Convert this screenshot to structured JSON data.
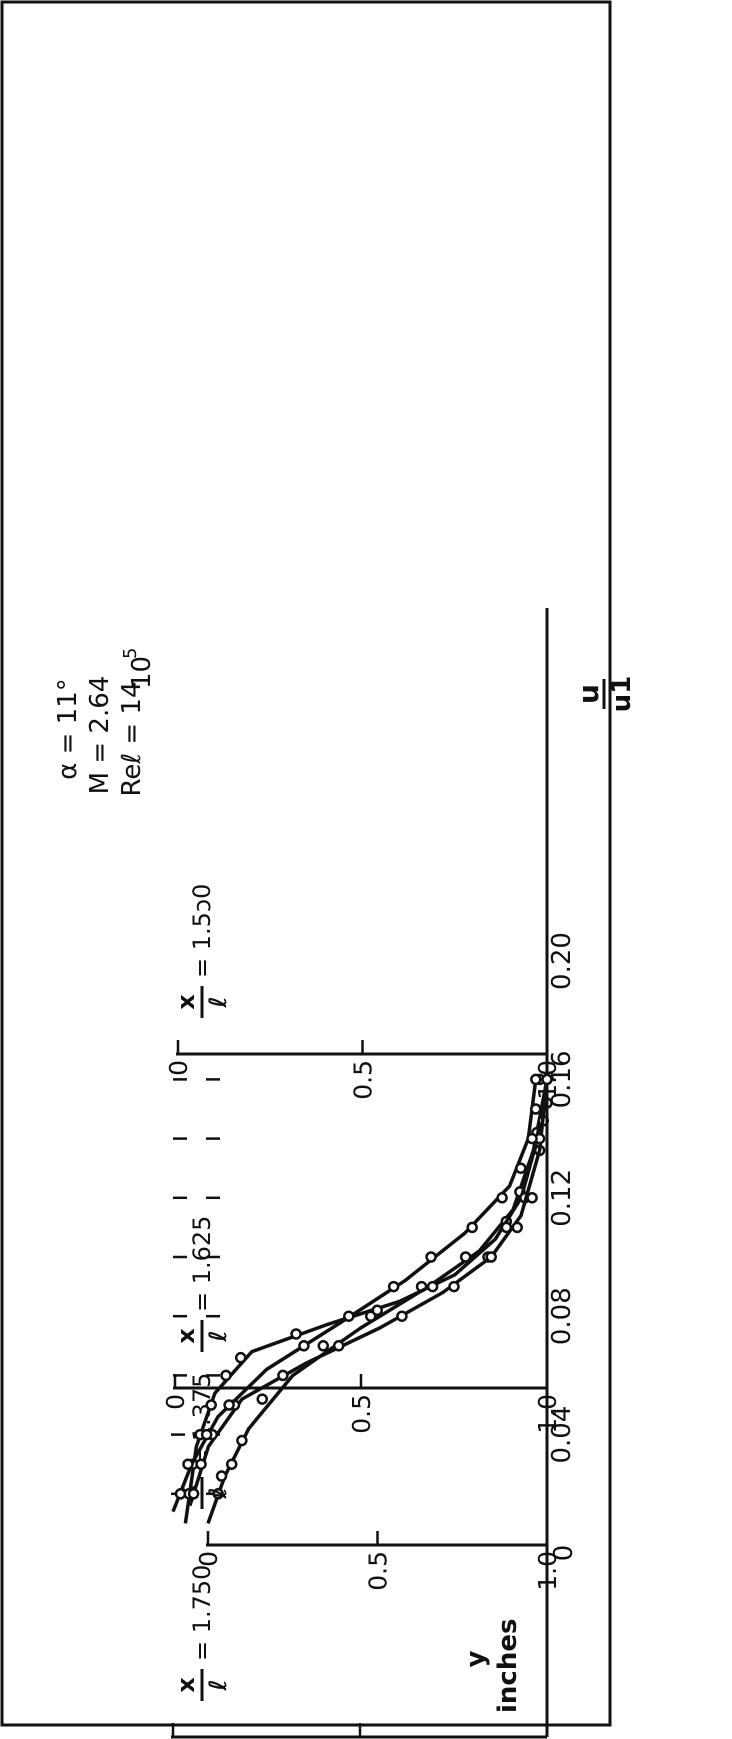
{
  "parameters": {
    "alpha": "α = 11°",
    "mach": "M = 2.64",
    "reynolds": "Reℓ = 14",
    "reynolds_power": "10",
    "reynolds_exponent": "5"
  },
  "y_axis": {
    "label": "y",
    "unit": "inches",
    "ticks": [
      "0.20",
      "0.16",
      "0.12",
      "0.08",
      "0.04",
      "0"
    ]
  },
  "x_axis": {
    "label_numerator": "u",
    "label_denominator": "u1",
    "ticks": [
      "0",
      "0.5",
      "1.0"
    ]
  },
  "station_label": {
    "numerator": "x",
    "denominator": "ℓ"
  },
  "chart_data": [
    {
      "type": "scatter",
      "station": "1.375",
      "station_text": "= 1.375",
      "xlim": [
        0,
        1.0
      ],
      "ylim": [
        0,
        0.2
      ],
      "points": [
        {
          "x": 0.03,
          "y": 0.02
        },
        {
          "x": 0.04,
          "y": 0.026
        },
        {
          "x": 0.07,
          "y": 0.03
        },
        {
          "x": 0.1,
          "y": 0.038
        },
        {
          "x": 0.16,
          "y": 0.052
        },
        {
          "x": 0.34,
          "y": 0.07
        },
        {
          "x": 0.48,
          "y": 0.08
        },
        {
          "x": 0.63,
          "y": 0.09
        },
        {
          "x": 0.76,
          "y": 0.1
        },
        {
          "x": 0.88,
          "y": 0.112
        },
        {
          "x": 0.92,
          "y": 0.122
        },
        {
          "x": 0.97,
          "y": 0.142
        },
        {
          "x": 1.0,
          "y": 0.16
        }
      ],
      "curve": [
        {
          "x": 0.0,
          "y": 0.01
        },
        {
          "x": 0.05,
          "y": 0.026
        },
        {
          "x": 0.12,
          "y": 0.042
        },
        {
          "x": 0.25,
          "y": 0.06
        },
        {
          "x": 0.45,
          "y": 0.076
        },
        {
          "x": 0.65,
          "y": 0.09
        },
        {
          "x": 0.8,
          "y": 0.102
        },
        {
          "x": 0.9,
          "y": 0.116
        },
        {
          "x": 0.96,
          "y": 0.136
        },
        {
          "x": 1.0,
          "y": 0.16
        }
      ]
    },
    {
      "type": "scatter",
      "station": "1.500",
      "station_text": "= 1.5ͻ0",
      "xlim": [
        0,
        1.0
      ],
      "ylim": [
        0,
        0.2
      ],
      "points": [
        {
          "x": 0.03,
          "y": 0.02
        },
        {
          "x": 0.04,
          "y": 0.03
        },
        {
          "x": 0.06,
          "y": 0.04
        },
        {
          "x": 0.09,
          "y": 0.05
        },
        {
          "x": 0.13,
          "y": 0.06
        },
        {
          "x": 0.17,
          "y": 0.066
        },
        {
          "x": 0.32,
          "y": 0.074
        },
        {
          "x": 0.54,
          "y": 0.082
        },
        {
          "x": 0.69,
          "y": 0.09
        },
        {
          "x": 0.84,
          "y": 0.1
        },
        {
          "x": 0.89,
          "y": 0.11
        },
        {
          "x": 0.94,
          "y": 0.12
        },
        {
          "x": 0.98,
          "y": 0.136
        },
        {
          "x": 0.99,
          "y": 0.146
        },
        {
          "x": 1.0,
          "y": 0.152
        },
        {
          "x": 0.98,
          "y": 0.16
        }
      ],
      "curve": [
        {
          "x": 0.02,
          "y": 0.01
        },
        {
          "x": 0.05,
          "y": 0.036
        },
        {
          "x": 0.1,
          "y": 0.054
        },
        {
          "x": 0.2,
          "y": 0.068
        },
        {
          "x": 0.4,
          "y": 0.077
        },
        {
          "x": 0.6,
          "y": 0.085
        },
        {
          "x": 0.75,
          "y": 0.094
        },
        {
          "x": 0.86,
          "y": 0.106
        },
        {
          "x": 0.93,
          "y": 0.12
        },
        {
          "x": 0.97,
          "y": 0.138
        },
        {
          "x": 1.0,
          "y": 0.16
        }
      ]
    },
    {
      "type": "scatter",
      "station": "1.625",
      "station_text": "= 1.625",
      "xlim": [
        0,
        1.0
      ],
      "ylim": [
        0,
        0.2
      ],
      "points": [
        {
          "x": 0.05,
          "y": 0.02
        },
        {
          "x": 0.07,
          "y": 0.03
        },
        {
          "x": 0.1,
          "y": 0.04
        },
        {
          "x": 0.16,
          "y": 0.05
        },
        {
          "x": 0.29,
          "y": 0.06
        },
        {
          "x": 0.44,
          "y": 0.07
        },
        {
          "x": 0.61,
          "y": 0.08
        },
        {
          "x": 0.75,
          "y": 0.09
        },
        {
          "x": 0.85,
          "y": 0.1
        },
        {
          "x": 0.92,
          "y": 0.11
        },
        {
          "x": 0.96,
          "y": 0.12
        },
        {
          "x": 0.98,
          "y": 0.14
        },
        {
          "x": 1.0,
          "y": 0.16
        }
      ],
      "curve": [
        {
          "x": 0.04,
          "y": 0.016
        },
        {
          "x": 0.09,
          "y": 0.036
        },
        {
          "x": 0.18,
          "y": 0.052
        },
        {
          "x": 0.35,
          "y": 0.064
        },
        {
          "x": 0.55,
          "y": 0.076
        },
        {
          "x": 0.72,
          "y": 0.088
        },
        {
          "x": 0.85,
          "y": 0.1
        },
        {
          "x": 0.93,
          "y": 0.114
        },
        {
          "x": 0.98,
          "y": 0.136
        },
        {
          "x": 1.0,
          "y": 0.16
        }
      ]
    },
    {
      "type": "scatter",
      "station": "1.750",
      "station_text": "= 1.750",
      "xlim": [
        0,
        1.0
      ],
      "ylim": [
        0,
        0.2
      ],
      "points": [
        {
          "x": 0.02,
          "y": 0.02
        },
        {
          "x": 0.04,
          "y": 0.03
        },
        {
          "x": 0.09,
          "y": 0.04
        },
        {
          "x": 0.15,
          "y": 0.05
        },
        {
          "x": 0.35,
          "y": 0.07
        },
        {
          "x": 0.47,
          "y": 0.08
        },
        {
          "x": 0.59,
          "y": 0.09
        },
        {
          "x": 0.69,
          "y": 0.1
        },
        {
          "x": 0.8,
          "y": 0.11
        },
        {
          "x": 0.88,
          "y": 0.12
        },
        {
          "x": 0.93,
          "y": 0.13
        },
        {
          "x": 0.96,
          "y": 0.14
        },
        {
          "x": 0.97,
          "y": 0.15
        },
        {
          "x": 0.97,
          "y": 0.16
        }
      ],
      "curve": [
        {
          "x": 0.0,
          "y": 0.014
        },
        {
          "x": 0.05,
          "y": 0.03
        },
        {
          "x": 0.12,
          "y": 0.046
        },
        {
          "x": 0.25,
          "y": 0.062
        },
        {
          "x": 0.45,
          "y": 0.078
        },
        {
          "x": 0.62,
          "y": 0.092
        },
        {
          "x": 0.78,
          "y": 0.108
        },
        {
          "x": 0.9,
          "y": 0.124
        },
        {
          "x": 0.95,
          "y": 0.14
        },
        {
          "x": 0.97,
          "y": 0.16
        }
      ]
    }
  ]
}
